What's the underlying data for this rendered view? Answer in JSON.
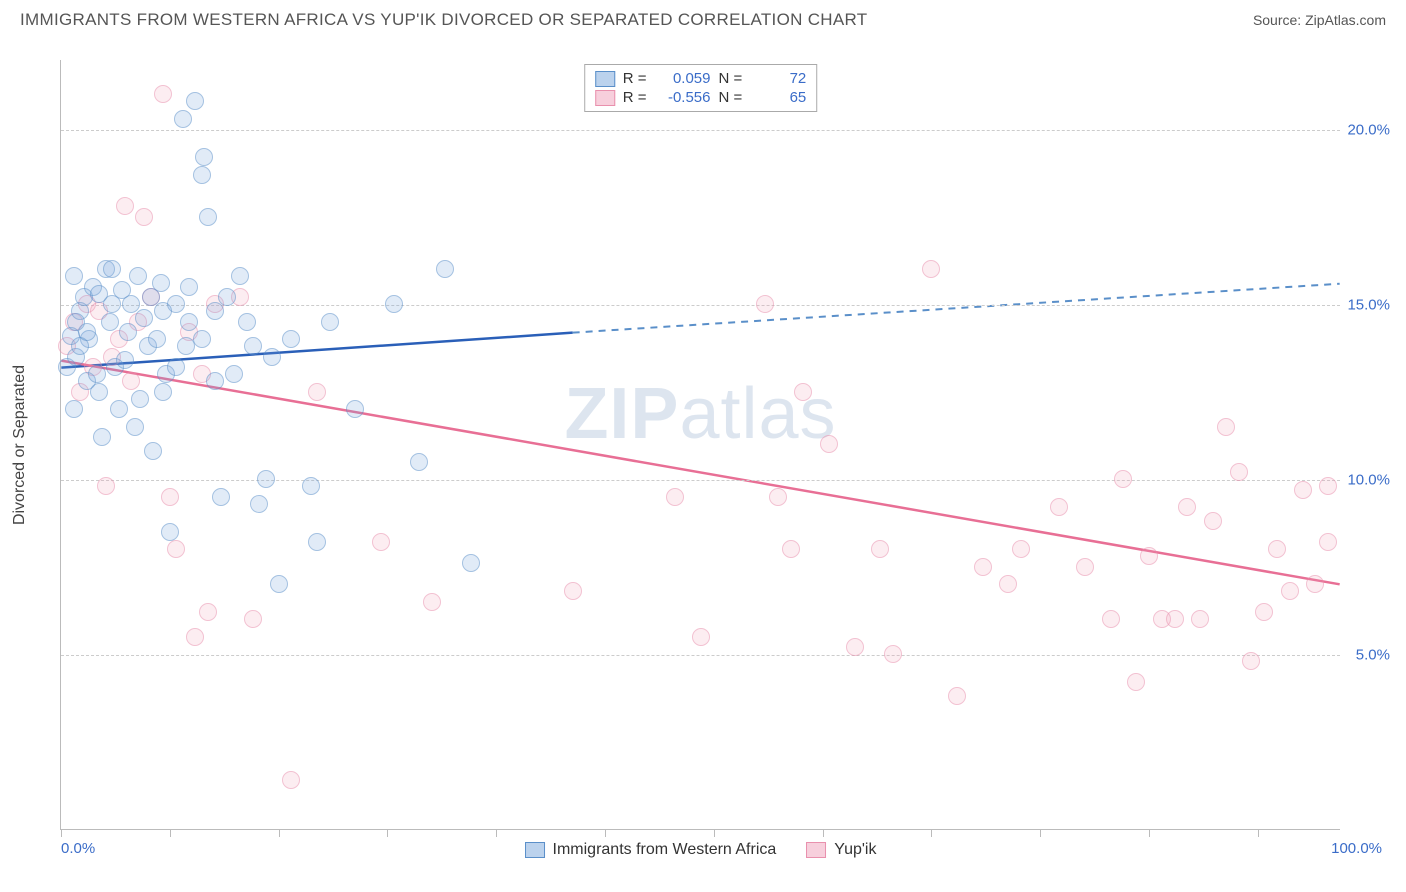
{
  "title": "IMMIGRANTS FROM WESTERN AFRICA VS YUP'IK DIVORCED OR SEPARATED CORRELATION CHART",
  "source": "Source: ZipAtlas.com",
  "watermark_pre": "ZIP",
  "watermark_post": "atlas",
  "ylabel": "Divorced or Separated",
  "xlim": [
    0,
    100
  ],
  "ylim": [
    0,
    22
  ],
  "xtick_positions": [
    0,
    8.5,
    17,
    25.5,
    34,
    42.5,
    51,
    59.5,
    68,
    76.5,
    85,
    93.5
  ],
  "xtick_labels": {
    "left": "0.0%",
    "right": "100.0%"
  },
  "ytick_values": [
    5,
    10,
    15,
    20
  ],
  "ytick_labels": [
    "5.0%",
    "10.0%",
    "15.0%",
    "20.0%"
  ],
  "legend_top": {
    "rows": [
      {
        "r_label": "R =",
        "r_val": "0.059",
        "n_label": "N =",
        "n_val": "72"
      },
      {
        "r_label": "R =",
        "r_val": "-0.556",
        "n_label": "N =",
        "n_val": "65"
      }
    ]
  },
  "legend_bottom": {
    "series1": "Immigrants from Western Africa",
    "series2": "Yup'ik"
  },
  "series": {
    "blue": {
      "color_fill": "rgba(120,165,220,0.4)",
      "color_stroke": "#5a8fc9",
      "trend": {
        "x1": 0,
        "y1": 13.2,
        "x2_solid": 40,
        "y2_solid": 14.2,
        "x2": 100,
        "y2": 15.6
      },
      "points": [
        [
          0.5,
          13.2
        ],
        [
          0.8,
          14.1
        ],
        [
          1.0,
          12.0
        ],
        [
          1.2,
          13.5
        ],
        [
          1.5,
          14.8
        ],
        [
          1.8,
          15.2
        ],
        [
          2.0,
          12.8
        ],
        [
          2.2,
          14.0
        ],
        [
          2.5,
          15.5
        ],
        [
          2.8,
          13.0
        ],
        [
          3.0,
          12.5
        ],
        [
          1.0,
          15.8
        ],
        [
          3.2,
          11.2
        ],
        [
          1.5,
          13.8
        ],
        [
          3.5,
          16.0
        ],
        [
          3.8,
          14.5
        ],
        [
          4.0,
          15.0
        ],
        [
          2.0,
          14.2
        ],
        [
          4.2,
          13.2
        ],
        [
          1.2,
          14.5
        ],
        [
          4.5,
          12.0
        ],
        [
          4.8,
          15.4
        ],
        [
          5.0,
          13.4
        ],
        [
          5.2,
          14.2
        ],
        [
          5.5,
          15.0
        ],
        [
          5.8,
          11.5
        ],
        [
          6.0,
          15.8
        ],
        [
          6.2,
          12.3
        ],
        [
          6.5,
          14.6
        ],
        [
          6.8,
          13.8
        ],
        [
          7.0,
          15.2
        ],
        [
          7.2,
          10.8
        ],
        [
          7.5,
          14.0
        ],
        [
          7.8,
          15.6
        ],
        [
          8.0,
          12.5
        ],
        [
          8.2,
          13.0
        ],
        [
          8.5,
          8.5
        ],
        [
          3.0,
          15.3
        ],
        [
          9.0,
          15.0
        ],
        [
          9.5,
          20.3
        ],
        [
          9.8,
          13.8
        ],
        [
          10.0,
          14.5
        ],
        [
          10.5,
          20.8
        ],
        [
          11.0,
          18.7
        ],
        [
          11.2,
          19.2
        ],
        [
          11.5,
          17.5
        ],
        [
          12.0,
          14.8
        ],
        [
          12.5,
          9.5
        ],
        [
          13.0,
          15.2
        ],
        [
          13.5,
          13.0
        ],
        [
          14.5,
          14.5
        ],
        [
          15.0,
          13.8
        ],
        [
          15.5,
          9.3
        ],
        [
          17.0,
          7.0
        ],
        [
          16.0,
          10.0
        ],
        [
          8.0,
          14.8
        ],
        [
          9.0,
          13.2
        ],
        [
          10.0,
          15.5
        ],
        [
          11.0,
          14.0
        ],
        [
          12.0,
          12.8
        ],
        [
          14.0,
          15.8
        ],
        [
          16.5,
          13.5
        ],
        [
          18.0,
          14.0
        ],
        [
          19.5,
          9.8
        ],
        [
          20.0,
          8.2
        ],
        [
          21.0,
          14.5
        ],
        [
          23.0,
          12.0
        ],
        [
          26.0,
          15.0
        ],
        [
          28.0,
          10.5
        ],
        [
          30.0,
          16.0
        ],
        [
          32.0,
          7.6
        ],
        [
          4.0,
          16.0
        ]
      ]
    },
    "pink": {
      "color_fill": "rgba(240,160,185,0.35)",
      "color_stroke": "#e990ad",
      "trend": {
        "x1": 0,
        "y1": 13.4,
        "x2": 100,
        "y2": 7.0
      },
      "points": [
        [
          0.5,
          13.8
        ],
        [
          1.0,
          14.5
        ],
        [
          1.5,
          12.5
        ],
        [
          2.0,
          15.0
        ],
        [
          2.5,
          13.2
        ],
        [
          3.0,
          14.8
        ],
        [
          3.5,
          9.8
        ],
        [
          4.0,
          13.5
        ],
        [
          4.5,
          14.0
        ],
        [
          5.0,
          17.8
        ],
        [
          5.5,
          12.8
        ],
        [
          6.0,
          14.5
        ],
        [
          6.5,
          17.5
        ],
        [
          7.0,
          15.2
        ],
        [
          8.0,
          21.0
        ],
        [
          8.5,
          9.5
        ],
        [
          9.0,
          8.0
        ],
        [
          10.0,
          14.2
        ],
        [
          10.5,
          5.5
        ],
        [
          11.0,
          13.0
        ],
        [
          11.5,
          6.2
        ],
        [
          12.0,
          15.0
        ],
        [
          14.0,
          15.2
        ],
        [
          15.0,
          6.0
        ],
        [
          18.0,
          1.4
        ],
        [
          20.0,
          12.5
        ],
        [
          25.0,
          8.2
        ],
        [
          29.0,
          6.5
        ],
        [
          40.0,
          6.8
        ],
        [
          48.0,
          9.5
        ],
        [
          50.0,
          5.5
        ],
        [
          55.0,
          15.0
        ],
        [
          56.0,
          9.5
        ],
        [
          57.0,
          8.0
        ],
        [
          58.0,
          12.5
        ],
        [
          60.0,
          11.0
        ],
        [
          62.0,
          5.2
        ],
        [
          64.0,
          8.0
        ],
        [
          65.0,
          5.0
        ],
        [
          68.0,
          16.0
        ],
        [
          70.0,
          3.8
        ],
        [
          72.0,
          7.5
        ],
        [
          74.0,
          7.0
        ],
        [
          75.0,
          8.0
        ],
        [
          78.0,
          9.2
        ],
        [
          80.0,
          7.5
        ],
        [
          82.0,
          6.0
        ],
        [
          83.0,
          10.0
        ],
        [
          85.0,
          7.8
        ],
        [
          86.0,
          6.0
        ],
        [
          87.0,
          6.0
        ],
        [
          88.0,
          9.2
        ],
        [
          89.0,
          6.0
        ],
        [
          90.0,
          8.8
        ],
        [
          91.0,
          11.5
        ],
        [
          92.0,
          10.2
        ],
        [
          93.0,
          4.8
        ],
        [
          94.0,
          6.2
        ],
        [
          95.0,
          8.0
        ],
        [
          96.0,
          6.8
        ],
        [
          97.0,
          9.7
        ],
        [
          98.0,
          7.0
        ],
        [
          99.0,
          8.2
        ],
        [
          99.0,
          9.8
        ],
        [
          84.0,
          4.2
        ]
      ]
    }
  }
}
